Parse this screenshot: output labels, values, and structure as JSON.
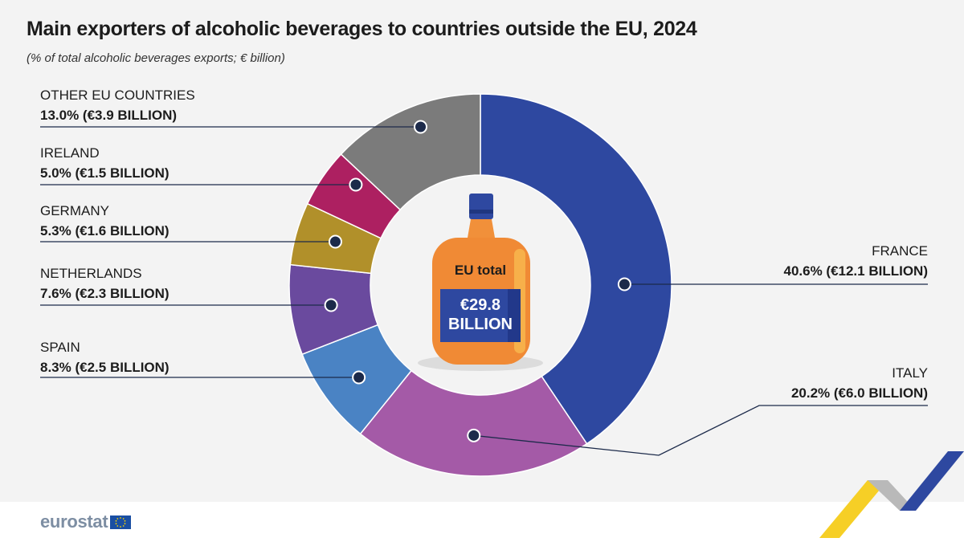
{
  "header": {
    "title": "Main exporters of alcoholic beverages to countries outside the EU, 2024",
    "subtitle": "(% of total alcoholic beverages exports; € billion)"
  },
  "center": {
    "label": "EU total",
    "value_line1": "€29.8",
    "value_line2": "BILLION"
  },
  "footer": {
    "logo_text": "eurostat"
  },
  "colors": {
    "France": "#2e48a0",
    "Italy": "#a45aa7",
    "Spain": "#4a83c4",
    "Netherlands": "#6a4a9e",
    "Germany": "#b1902a",
    "Ireland": "#ad2061",
    "Other EU countries": "#7b7b7b"
  },
  "chart_data": {
    "type": "pie",
    "variant": "donut",
    "slices": [
      {
        "name": "FRANCE",
        "value": 40.6,
        "label": "40.6% (€12.1 BILLION)",
        "color": "#2e48a0"
      },
      {
        "name": "ITALY",
        "value": 20.2,
        "label": "20.2% (€6.0 BILLION)",
        "color": "#a45aa7"
      },
      {
        "name": "SPAIN",
        "value": 8.3,
        "label": "8.3% (€2.5 BILLION)",
        "color": "#4a83c4"
      },
      {
        "name": "NETHERLANDS",
        "value": 7.6,
        "label": "7.6% (€2.3 BILLION)",
        "color": "#6a4a9e"
      },
      {
        "name": "GERMANY",
        "value": 5.3,
        "label": "5.3% (€1.6 BILLION)",
        "color": "#b1902a"
      },
      {
        "name": "IRELAND",
        "value": 5.0,
        "label": "5.0% (€1.5 BILLION)",
        "color": "#ad2061"
      },
      {
        "name": "OTHER EU COUNTRIES",
        "value": 13.0,
        "label": "13.0% (€3.9 BILLION)",
        "color": "#7b7b7b"
      }
    ]
  }
}
